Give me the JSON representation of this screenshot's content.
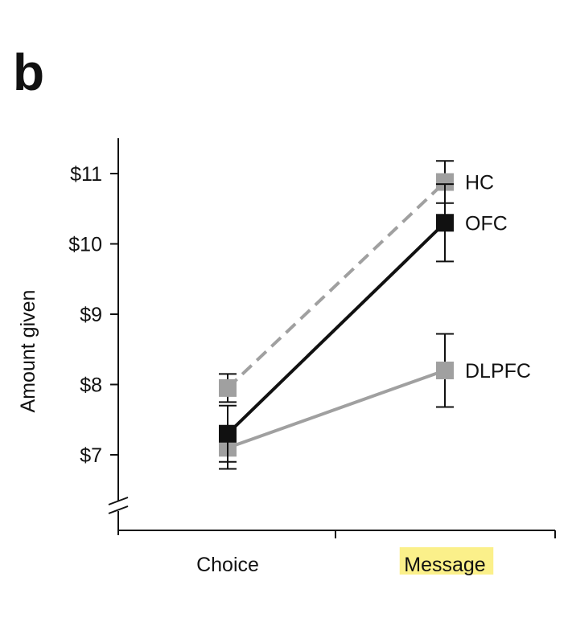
{
  "panel_label": "b",
  "chart_data": {
    "type": "line",
    "title": "",
    "xlabel": "",
    "ylabel": "Amount given",
    "categories": [
      "Choice",
      "Message"
    ],
    "highlighted_category": "Message",
    "highlight_color": "#fbf08a",
    "y_ticks": [
      7,
      8,
      9,
      10,
      11
    ],
    "y_tick_labels": [
      "$7",
      "$8",
      "$9",
      "$10",
      "$11"
    ],
    "ylim": [
      6.2,
      11.5
    ],
    "y_axis_break": true,
    "grid": false,
    "legend": "direct labels at line ends (right)",
    "series": [
      {
        "name": "HC",
        "values": [
          7.95,
          10.88
        ],
        "error": [
          0.2,
          0.3
        ],
        "color": "#a0a0a0",
        "dashed": true
      },
      {
        "name": "OFC",
        "values": [
          7.3,
          10.3
        ],
        "error": [
          0.4,
          0.55
        ],
        "color": "#111111",
        "dashed": false
      },
      {
        "name": "DLPFC",
        "values": [
          7.1,
          8.2
        ],
        "error": [
          0.3,
          0.52
        ],
        "color": "#a0a0a0",
        "dashed": false
      }
    ]
  }
}
